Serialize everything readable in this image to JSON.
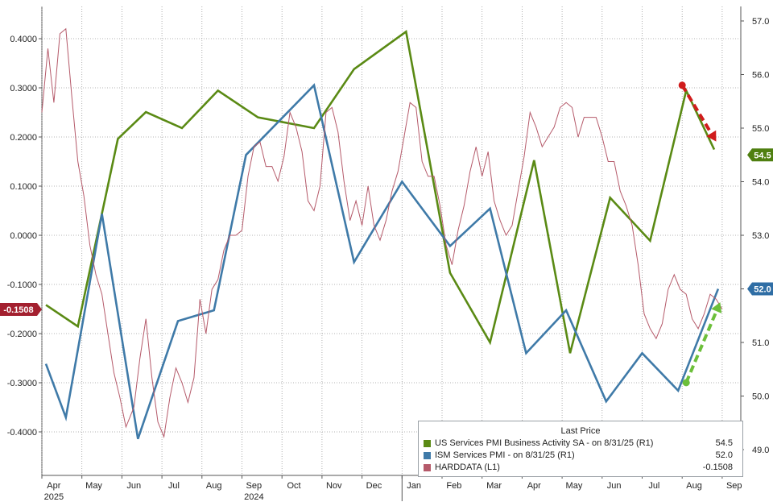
{
  "colors": {
    "green": "#5a8a14",
    "blue": "#3f7aa8",
    "red": "#b55a6a",
    "badge_red": "#a3202f",
    "badge_green": "#4f7f10",
    "badge_blue": "#2f6ea5",
    "arrow_red": "#d01c1c",
    "arrow_green": "#6cbf3a"
  },
  "legend": {
    "title": "Last Price",
    "rows": [
      {
        "label": "US Services PMI Business Activity SA - on 8/31/25 (R1)",
        "value": "54.5",
        "color": "green"
      },
      {
        "label": "ISM Services PMI - on 8/31/25 (R1)",
        "value": "52.0",
        "color": "blue"
      },
      {
        "label": "HARDDATA (L1)",
        "value": "-0.1508",
        "color": "red"
      }
    ]
  },
  "badges": {
    "left": "-0.1508",
    "right_green": "54.5",
    "right_blue": "52.0"
  },
  "chart_data": {
    "type": "line",
    "x_months": [
      "Apr",
      "May",
      "Jun",
      "Jul",
      "Aug",
      "Sep",
      "Oct",
      "Nov",
      "Dec",
      "Jan",
      "Feb",
      "Mar",
      "Apr",
      "May",
      "Jun",
      "Jul",
      "Aug",
      "Sep"
    ],
    "years": [
      {
        "label": "2024",
        "under": "Sep"
      },
      {
        "label": "2025",
        "under": "Apr"
      }
    ],
    "left_axis": {
      "ticks": [
        "0.4000",
        "0.3000",
        "0.2000",
        "0.1000",
        "0.0000",
        "-0.1000",
        "-0.2000",
        "-0.3000",
        "-0.4000"
      ],
      "ylim": [
        -0.45,
        0.45
      ]
    },
    "right_axis": {
      "ticks": [
        "57.0",
        "56.0",
        "55.0",
        "54.0",
        "53.0",
        "52.0",
        "51.0",
        "50.0",
        "49.0"
      ],
      "ylim": [
        48.8,
        57.2
      ]
    },
    "grid": true,
    "series": [
      {
        "name": "US Services PMI Business Activity SA",
        "axis": "right",
        "color": "green",
        "points": [
          [
            0.1,
            51.7
          ],
          [
            0.9,
            51.3
          ],
          [
            1.9,
            54.8
          ],
          [
            2.6,
            55.3
          ],
          [
            3.5,
            55.0
          ],
          [
            4.4,
            55.7
          ],
          [
            5.4,
            55.2
          ],
          [
            6.8,
            55.0
          ],
          [
            7.8,
            56.1
          ],
          [
            9.1,
            56.8
          ],
          [
            10.2,
            52.3
          ],
          [
            11.2,
            51.0
          ],
          [
            12.3,
            54.4
          ],
          [
            13.2,
            50.8
          ],
          [
            14.2,
            53.7
          ],
          [
            15.2,
            52.9
          ],
          [
            16.1,
            55.7
          ],
          [
            16.8,
            54.6
          ]
        ]
      },
      {
        "name": "ISM Services PMI",
        "axis": "right",
        "color": "blue",
        "points": [
          [
            0.1,
            50.6
          ],
          [
            0.6,
            49.6
          ],
          [
            1.5,
            53.4
          ],
          [
            2.4,
            49.2
          ],
          [
            3.4,
            51.4
          ],
          [
            4.3,
            51.6
          ],
          [
            5.1,
            54.5
          ],
          [
            6.8,
            55.8
          ],
          [
            7.8,
            52.5
          ],
          [
            9.0,
            54.0
          ],
          [
            10.2,
            52.8
          ],
          [
            11.2,
            53.5
          ],
          [
            12.1,
            50.8
          ],
          [
            13.1,
            51.6
          ],
          [
            14.1,
            49.9
          ],
          [
            15.0,
            50.8
          ],
          [
            15.9,
            50.1
          ],
          [
            16.9,
            52.0
          ]
        ]
      },
      {
        "name": "HARDDATA",
        "axis": "left",
        "color": "red",
        "points": [
          [
            0.0,
            0.25
          ],
          [
            0.15,
            0.38
          ],
          [
            0.3,
            0.27
          ],
          [
            0.45,
            0.41
          ],
          [
            0.6,
            0.42
          ],
          [
            0.75,
            0.28
          ],
          [
            0.9,
            0.15
          ],
          [
            1.05,
            0.08
          ],
          [
            1.2,
            -0.02
          ],
          [
            1.35,
            -0.08
          ],
          [
            1.5,
            -0.12
          ],
          [
            1.65,
            -0.2
          ],
          [
            1.8,
            -0.28
          ],
          [
            1.95,
            -0.33
          ],
          [
            2.1,
            -0.39
          ],
          [
            2.3,
            -0.35
          ],
          [
            2.45,
            -0.25
          ],
          [
            2.6,
            -0.17
          ],
          [
            2.75,
            -0.29
          ],
          [
            2.9,
            -0.38
          ],
          [
            3.05,
            -0.41
          ],
          [
            3.2,
            -0.33
          ],
          [
            3.35,
            -0.27
          ],
          [
            3.5,
            -0.3
          ],
          [
            3.65,
            -0.34
          ],
          [
            3.8,
            -0.29
          ],
          [
            3.95,
            -0.13
          ],
          [
            4.1,
            -0.2
          ],
          [
            4.25,
            -0.11
          ],
          [
            4.4,
            -0.09
          ],
          [
            4.55,
            -0.03
          ],
          [
            4.7,
            0.0
          ],
          [
            4.85,
            0.0
          ],
          [
            5.0,
            0.01
          ],
          [
            5.15,
            0.12
          ],
          [
            5.3,
            0.18
          ],
          [
            5.45,
            0.19
          ],
          [
            5.6,
            0.14
          ],
          [
            5.75,
            0.14
          ],
          [
            5.9,
            0.11
          ],
          [
            6.05,
            0.16
          ],
          [
            6.2,
            0.25
          ],
          [
            6.35,
            0.22
          ],
          [
            6.5,
            0.17
          ],
          [
            6.65,
            0.07
          ],
          [
            6.8,
            0.05
          ],
          [
            6.95,
            0.1
          ],
          [
            7.1,
            0.25
          ],
          [
            7.25,
            0.26
          ],
          [
            7.4,
            0.21
          ],
          [
            7.55,
            0.11
          ],
          [
            7.7,
            0.03
          ],
          [
            7.85,
            0.07
          ],
          [
            8.0,
            0.02
          ],
          [
            8.15,
            0.1
          ],
          [
            8.3,
            0.02
          ],
          [
            8.45,
            -0.01
          ],
          [
            8.6,
            0.03
          ],
          [
            8.75,
            0.09
          ],
          [
            8.9,
            0.13
          ],
          [
            9.05,
            0.2
          ],
          [
            9.2,
            0.27
          ],
          [
            9.35,
            0.26
          ],
          [
            9.5,
            0.15
          ],
          [
            9.65,
            0.12
          ],
          [
            9.8,
            0.12
          ],
          [
            9.95,
            0.06
          ],
          [
            10.1,
            -0.02
          ],
          [
            10.25,
            -0.06
          ],
          [
            10.4,
            0.01
          ],
          [
            10.55,
            0.06
          ],
          [
            10.7,
            0.13
          ],
          [
            10.85,
            0.18
          ],
          [
            11.0,
            0.12
          ],
          [
            11.15,
            0.17
          ],
          [
            11.3,
            0.07
          ],
          [
            11.45,
            0.03
          ],
          [
            11.6,
            0.0
          ],
          [
            11.75,
            0.02
          ],
          [
            11.9,
            0.09
          ],
          [
            12.05,
            0.16
          ],
          [
            12.2,
            0.25
          ],
          [
            12.35,
            0.22
          ],
          [
            12.5,
            0.18
          ],
          [
            12.65,
            0.2
          ],
          [
            12.8,
            0.22
          ],
          [
            12.95,
            0.26
          ],
          [
            13.1,
            0.27
          ],
          [
            13.25,
            0.26
          ],
          [
            13.4,
            0.2
          ],
          [
            13.55,
            0.24
          ],
          [
            13.7,
            0.24
          ],
          [
            13.85,
            0.24
          ],
          [
            14.0,
            0.2
          ],
          [
            14.15,
            0.15
          ],
          [
            14.3,
            0.15
          ],
          [
            14.45,
            0.09
          ],
          [
            14.6,
            0.06
          ],
          [
            14.75,
            0.02
          ],
          [
            14.9,
            -0.06
          ],
          [
            15.05,
            -0.16
          ],
          [
            15.2,
            -0.19
          ],
          [
            15.35,
            -0.21
          ],
          [
            15.5,
            -0.18
          ],
          [
            15.65,
            -0.11
          ],
          [
            15.8,
            -0.08
          ],
          [
            15.95,
            -0.11
          ],
          [
            16.1,
            -0.12
          ],
          [
            16.25,
            -0.17
          ],
          [
            16.4,
            -0.19
          ],
          [
            16.55,
            -0.16
          ],
          [
            16.7,
            -0.12
          ],
          [
            16.85,
            -0.13
          ],
          [
            17.0,
            -0.15
          ]
        ]
      }
    ],
    "annotations": [
      {
        "type": "arrow",
        "color": "arrow_red",
        "from": [
          16.0,
          55.8
        ],
        "to": [
          16.85,
          54.75
        ],
        "axis": "right"
      },
      {
        "type": "arrow",
        "color": "arrow_green",
        "from": [
          16.1,
          50.25
        ],
        "to": [
          16.95,
          51.75
        ],
        "axis": "right"
      }
    ]
  }
}
